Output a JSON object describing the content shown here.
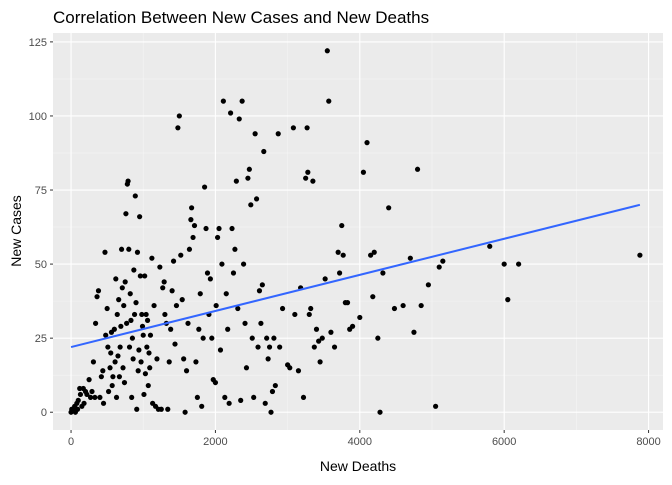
{
  "chart_data": {
    "type": "scatter",
    "title": "Correlation Between New Cases and New Deaths",
    "xlabel": "New Deaths",
    "ylabel": "New Cases",
    "xlim": [
      -250,
      8200
    ],
    "ylim": [
      -6,
      128
    ],
    "x_ticks": [
      0,
      2000,
      4000,
      6000,
      8000
    ],
    "x_tick_labels": [
      "0",
      "2000",
      "4000",
      "6000",
      "8000"
    ],
    "y_ticks": [
      0,
      25,
      50,
      75,
      100,
      125
    ],
    "y_tick_labels": [
      "0",
      "25",
      "50",
      "75",
      "100",
      "125"
    ],
    "grid": true,
    "trend_line": {
      "x": [
        0,
        7880
      ],
      "y": [
        22,
        70
      ],
      "color": "#3366FF"
    },
    "point_color": "#000000",
    "background": "#EBEBEB",
    "points": [
      [
        0,
        0
      ],
      [
        10,
        1
      ],
      [
        30,
        1
      ],
      [
        50,
        2
      ],
      [
        60,
        0
      ],
      [
        80,
        3
      ],
      [
        90,
        1
      ],
      [
        100,
        4
      ],
      [
        120,
        8
      ],
      [
        130,
        6
      ],
      [
        150,
        2
      ],
      [
        170,
        8
      ],
      [
        180,
        3
      ],
      [
        200,
        7
      ],
      [
        220,
        6
      ],
      [
        250,
        11
      ],
      [
        270,
        5
      ],
      [
        290,
        7
      ],
      [
        310,
        17
      ],
      [
        330,
        5
      ],
      [
        340,
        30
      ],
      [
        360,
        39
      ],
      [
        380,
        41
      ],
      [
        400,
        5
      ],
      [
        420,
        12
      ],
      [
        440,
        14
      ],
      [
        450,
        3
      ],
      [
        470,
        54
      ],
      [
        480,
        26
      ],
      [
        500,
        35
      ],
      [
        510,
        22
      ],
      [
        520,
        7
      ],
      [
        540,
        15
      ],
      [
        550,
        20
      ],
      [
        560,
        27
      ],
      [
        570,
        9
      ],
      [
        580,
        12
      ],
      [
        600,
        28
      ],
      [
        610,
        17
      ],
      [
        620,
        45
      ],
      [
        630,
        5
      ],
      [
        640,
        33
      ],
      [
        650,
        19
      ],
      [
        660,
        38
      ],
      [
        670,
        12
      ],
      [
        680,
        22
      ],
      [
        690,
        29
      ],
      [
        700,
        55
      ],
      [
        710,
        42
      ],
      [
        720,
        15
      ],
      [
        730,
        36
      ],
      [
        740,
        10
      ],
      [
        750,
        44
      ],
      [
        760,
        67
      ],
      [
        770,
        30
      ],
      [
        780,
        77
      ],
      [
        790,
        78
      ],
      [
        800,
        55
      ],
      [
        810,
        22
      ],
      [
        820,
        40
      ],
      [
        830,
        31
      ],
      [
        840,
        5
      ],
      [
        850,
        25
      ],
      [
        860,
        18
      ],
      [
        870,
        48
      ],
      [
        880,
        33
      ],
      [
        890,
        73
      ],
      [
        900,
        37
      ],
      [
        910,
        1
      ],
      [
        920,
        54
      ],
      [
        930,
        14
      ],
      [
        940,
        21
      ],
      [
        950,
        66
      ],
      [
        960,
        46
      ],
      [
        970,
        17
      ],
      [
        980,
        33
      ],
      [
        990,
        29
      ],
      [
        1000,
        26
      ],
      [
        1010,
        6
      ],
      [
        1020,
        46
      ],
      [
        1030,
        13
      ],
      [
        1040,
        33
      ],
      [
        1050,
        22
      ],
      [
        1060,
        31
      ],
      [
        1070,
        9
      ],
      [
        1080,
        20
      ],
      [
        1090,
        15
      ],
      [
        1100,
        26
      ],
      [
        1120,
        52
      ],
      [
        1130,
        3
      ],
      [
        1150,
        36
      ],
      [
        1170,
        2
      ],
      [
        1190,
        18
      ],
      [
        1210,
        1
      ],
      [
        1230,
        49
      ],
      [
        1250,
        1
      ],
      [
        1270,
        42
      ],
      [
        1290,
        44
      ],
      [
        1300,
        33
      ],
      [
        1320,
        30
      ],
      [
        1340,
        1
      ],
      [
        1360,
        17
      ],
      [
        1380,
        28
      ],
      [
        1400,
        41
      ],
      [
        1420,
        51
      ],
      [
        1440,
        23
      ],
      [
        1460,
        36
      ],
      [
        1480,
        96
      ],
      [
        1500,
        100
      ],
      [
        1520,
        53
      ],
      [
        1540,
        38
      ],
      [
        1560,
        18
      ],
      [
        1580,
        0
      ],
      [
        1600,
        14
      ],
      [
        1620,
        30
      ],
      [
        1640,
        55
      ],
      [
        1660,
        65
      ],
      [
        1670,
        69
      ],
      [
        1690,
        59
      ],
      [
        1710,
        63
      ],
      [
        1730,
        17
      ],
      [
        1750,
        5
      ],
      [
        1770,
        28
      ],
      [
        1790,
        40
      ],
      [
        1810,
        2
      ],
      [
        1830,
        25
      ],
      [
        1850,
        76
      ],
      [
        1870,
        62
      ],
      [
        1890,
        47
      ],
      [
        1910,
        33
      ],
      [
        1930,
        45
      ],
      [
        1950,
        25
      ],
      [
        1970,
        11
      ],
      [
        2000,
        10
      ],
      [
        2010,
        36
      ],
      [
        2030,
        59
      ],
      [
        2050,
        62
      ],
      [
        2070,
        21
      ],
      [
        2090,
        50
      ],
      [
        2110,
        105
      ],
      [
        2130,
        5
      ],
      [
        2150,
        40
      ],
      [
        2170,
        28
      ],
      [
        2190,
        3
      ],
      [
        2210,
        101
      ],
      [
        2230,
        62
      ],
      [
        2250,
        47
      ],
      [
        2270,
        55
      ],
      [
        2290,
        78
      ],
      [
        2310,
        35
      ],
      [
        2330,
        99
      ],
      [
        2350,
        4
      ],
      [
        2370,
        105
      ],
      [
        2390,
        50
      ],
      [
        2410,
        30
      ],
      [
        2430,
        15
      ],
      [
        2450,
        79
      ],
      [
        2470,
        82
      ],
      [
        2490,
        70
      ],
      [
        2510,
        25
      ],
      [
        2530,
        5
      ],
      [
        2550,
        94
      ],
      [
        2570,
        72
      ],
      [
        2590,
        22
      ],
      [
        2610,
        41
      ],
      [
        2630,
        30
      ],
      [
        2650,
        43
      ],
      [
        2670,
        88
      ],
      [
        2690,
        3
      ],
      [
        2710,
        25
      ],
      [
        2730,
        18
      ],
      [
        2750,
        22
      ],
      [
        2770,
        0
      ],
      [
        2790,
        7
      ],
      [
        2810,
        25
      ],
      [
        2830,
        9
      ],
      [
        2870,
        94
      ],
      [
        2890,
        22
      ],
      [
        2930,
        35
      ],
      [
        3000,
        16
      ],
      [
        3030,
        15
      ],
      [
        3080,
        96
      ],
      [
        3100,
        33
      ],
      [
        3150,
        14
      ],
      [
        3180,
        42
      ],
      [
        3220,
        5
      ],
      [
        3250,
        79
      ],
      [
        3270,
        96
      ],
      [
        3280,
        81
      ],
      [
        3300,
        33
      ],
      [
        3320,
        35
      ],
      [
        3350,
        78
      ],
      [
        3370,
        22
      ],
      [
        3400,
        28
      ],
      [
        3430,
        24
      ],
      [
        3450,
        17
      ],
      [
        3480,
        25
      ],
      [
        3520,
        45
      ],
      [
        3550,
        122
      ],
      [
        3570,
        105
      ],
      [
        3600,
        27
      ],
      [
        3650,
        22
      ],
      [
        3700,
        54
      ],
      [
        3720,
        47
      ],
      [
        3750,
        63
      ],
      [
        3770,
        53
      ],
      [
        3800,
        37
      ],
      [
        3830,
        37
      ],
      [
        3860,
        28
      ],
      [
        3900,
        29
      ],
      [
        4000,
        32
      ],
      [
        4050,
        81
      ],
      [
        4100,
        91
      ],
      [
        4150,
        53
      ],
      [
        4180,
        39
      ],
      [
        4200,
        54
      ],
      [
        4250,
        25
      ],
      [
        4280,
        0
      ],
      [
        4320,
        47
      ],
      [
        4400,
        69
      ],
      [
        4480,
        35
      ],
      [
        4600,
        36
      ],
      [
        4700,
        52
      ],
      [
        4750,
        27
      ],
      [
        4800,
        82
      ],
      [
        4850,
        36
      ],
      [
        4950,
        43
      ],
      [
        5050,
        2
      ],
      [
        5100,
        49
      ],
      [
        5150,
        51
      ],
      [
        5800,
        56
      ],
      [
        6000,
        50
      ],
      [
        6050,
        38
      ],
      [
        6200,
        50
      ],
      [
        7880,
        53
      ]
    ]
  }
}
